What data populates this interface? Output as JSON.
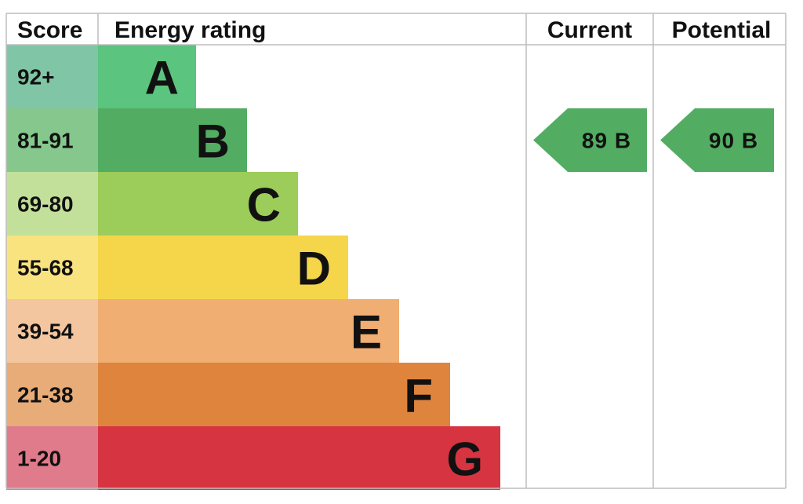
{
  "headers": {
    "score": "Score",
    "energy_rating": "Energy rating",
    "current": "Current",
    "potential": "Potential"
  },
  "chart_data": {
    "type": "bar",
    "bands": [
      {
        "letter": "A",
        "score": "92+",
        "color": "#5bc47e",
        "score_color": "#80c6a6"
      },
      {
        "letter": "B",
        "score": "81-91",
        "color": "#52ad62",
        "score_color": "#85c78c"
      },
      {
        "letter": "C",
        "score": "69-80",
        "color": "#9ccc59",
        "score_color": "#c3e09a"
      },
      {
        "letter": "D",
        "score": "55-68",
        "color": "#f5d64a",
        "score_color": "#f9e37f"
      },
      {
        "letter": "E",
        "score": "39-54",
        "color": "#f0ae72",
        "score_color": "#f4c6a0"
      },
      {
        "letter": "F",
        "score": "21-38",
        "color": "#df843d",
        "score_color": "#e8ac79"
      },
      {
        "letter": "G",
        "score": "1-20",
        "color": "#d73442",
        "score_color": "#e07b8b"
      }
    ],
    "current": {
      "value": 89,
      "band": "B",
      "label": "89  B",
      "color": "#52ad62"
    },
    "potential": {
      "value": 90,
      "band": "B",
      "label": "90  B",
      "color": "#52ad62"
    }
  }
}
